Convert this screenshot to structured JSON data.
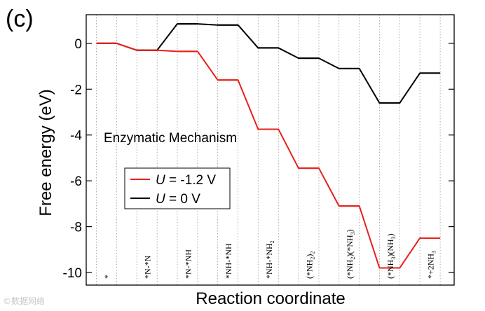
{
  "panel_label": "(c)",
  "watermark": "©数据网络",
  "chart_data": {
    "type": "line",
    "title": "",
    "xlabel": "Reaction coordinate",
    "ylabel": "Free energy (eV)",
    "ylim": [
      -10.55,
      1.25
    ],
    "yticks": [
      0,
      -2,
      -4,
      -6,
      -8,
      -10
    ],
    "yticklabels": [
      "0",
      "-2",
      "-4",
      "-6",
      "-8",
      "-10"
    ],
    "grid": "vertical dotted between states",
    "annotation": "Enzymatic Mechanism",
    "states": [
      {
        "parts": [
          {
            "t": "*"
          }
        ]
      },
      {
        "parts": [
          {
            "t": "*N-*N"
          }
        ]
      },
      {
        "parts": [
          {
            "t": "*N-*NH"
          }
        ]
      },
      {
        "parts": [
          {
            "t": "*NH-*NH"
          }
        ]
      },
      {
        "parts": [
          {
            "t": "*NH-*NH"
          },
          {
            "t": "2",
            "sub": true
          }
        ]
      },
      {
        "parts": [
          {
            "t": "(*NH"
          },
          {
            "t": "2",
            "sub": true
          },
          {
            "t": ")"
          },
          {
            "t": "2",
            "sub": true
          }
        ]
      },
      {
        "parts": [
          {
            "t": "(*NH"
          },
          {
            "t": "2",
            "sub": true
          },
          {
            "t": ")(*NH"
          },
          {
            "t": "3",
            "sub": true
          },
          {
            "t": ")"
          }
        ]
      },
      {
        "parts": [
          {
            "t": "(*NH"
          },
          {
            "t": "3",
            "sub": true
          },
          {
            "t": ")(NH"
          },
          {
            "t": "3",
            "sub": true
          },
          {
            "t": ")"
          }
        ]
      },
      {
        "parts": [
          {
            "t": "*+2NH"
          },
          {
            "t": "3",
            "sub": true
          }
        ]
      }
    ],
    "series": [
      {
        "name": "U = -1.2 V",
        "var": "U",
        "rest": " = -1.2 V",
        "color": "#e8201c",
        "values": [
          0.0,
          -0.3,
          -0.35,
          -1.6,
          -3.75,
          -5.45,
          -7.1,
          -9.8,
          -8.5
        ]
      },
      {
        "name": "U = 0 V",
        "var": "U",
        "rest": " = 0 V",
        "color": "#000000",
        "values": [
          0.0,
          -0.3,
          0.85,
          0.8,
          -0.2,
          -0.65,
          -1.1,
          -2.6,
          -1.3
        ]
      }
    ],
    "legend": "inside center-left"
  }
}
